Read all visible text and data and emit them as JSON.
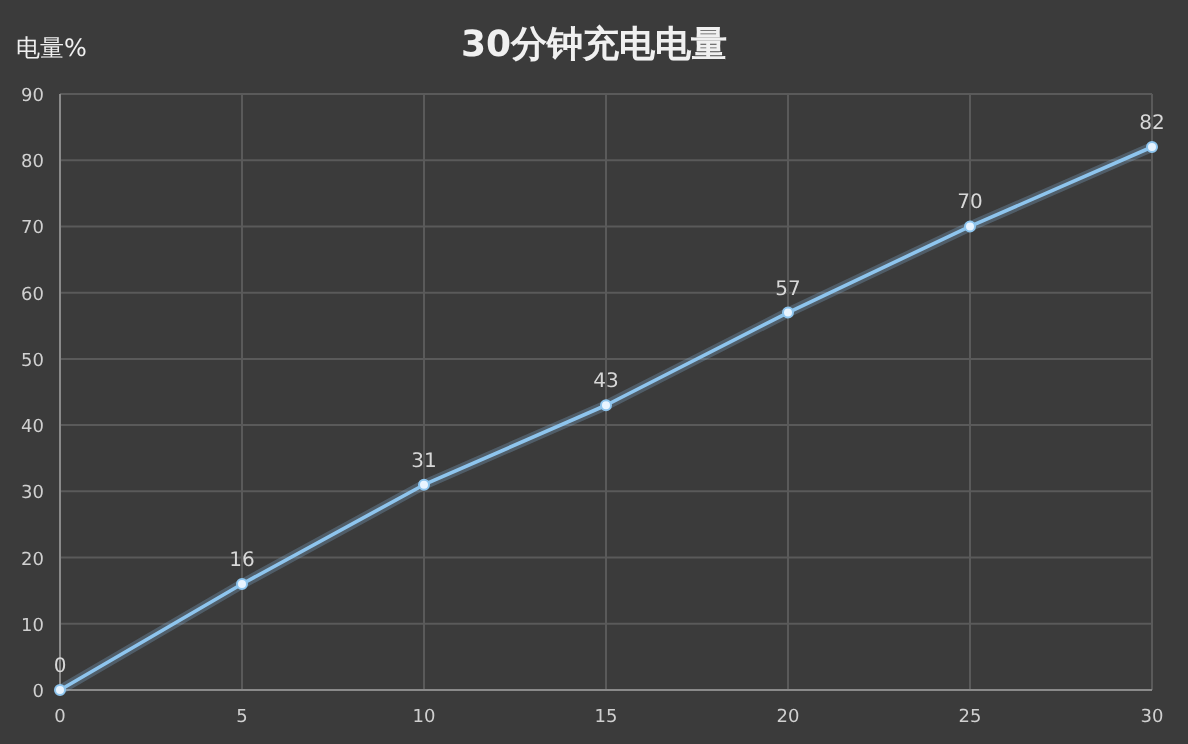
{
  "chart_data": {
    "type": "line",
    "title": "30分钟充电电量",
    "ylabel": "电量%",
    "x": [
      0,
      5,
      10,
      15,
      20,
      25,
      30
    ],
    "values": [
      0,
      16,
      31,
      43,
      57,
      70,
      82
    ],
    "color": "#8ec5ee",
    "xlim": [
      0,
      30
    ],
    "ylim": [
      0,
      90
    ],
    "xticks": [
      0,
      5,
      10,
      15,
      20,
      25,
      30
    ],
    "yticks": [
      0,
      10,
      20,
      30,
      40,
      50,
      60,
      70,
      80,
      90
    ],
    "grid": true,
    "data_labels": true,
    "marker": "circle"
  }
}
